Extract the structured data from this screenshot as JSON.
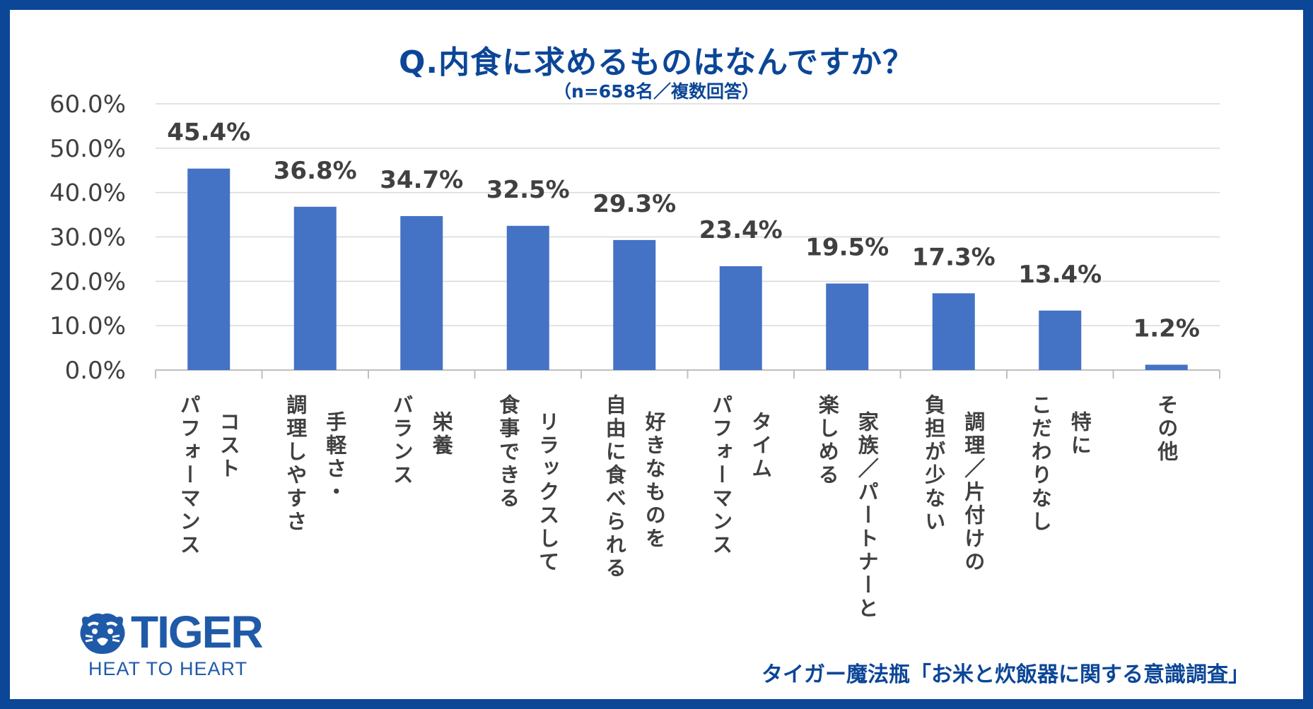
{
  "colors": {
    "bar": "#4472c4",
    "frame": "#0b4697",
    "title": "#0b4697",
    "text": "#404040",
    "grid": "#d9d9d9",
    "axis": "#bfbfbf"
  },
  "title": "Q.内食に求めるものはなんですか？",
  "subtitle": "（n=658名／複数回答）",
  "logo": {
    "brand": "TIGER",
    "tagline": "HEAT TO HEART",
    "icon": "tiger-head-icon"
  },
  "source": "タイガー魔法瓶「お米と炊飯器に関する意識調査」",
  "chart_data": {
    "type": "bar",
    "title": "Q.内食に求めるものはなんですか？",
    "subtitle": "（n=658名／複数回答）",
    "categories": [
      [
        "コスト",
        "パフォーマンス"
      ],
      [
        "手軽さ・",
        "調理しやすさ"
      ],
      [
        "栄養",
        "バランス"
      ],
      [
        "リラックスして",
        "食事できる"
      ],
      [
        "好きなものを",
        "自由に食べられる"
      ],
      [
        "タイム",
        "パフォーマンス"
      ],
      [
        "家族／パートナーと",
        "楽しめる"
      ],
      [
        "調理／片付けの",
        "負担が少ない"
      ],
      [
        "特に",
        "こだわりなし"
      ],
      [
        "その他"
      ]
    ],
    "values": [
      45.4,
      36.8,
      34.7,
      32.5,
      29.3,
      23.4,
      19.5,
      17.3,
      13.4,
      1.2
    ],
    "value_labels": [
      "45.4%",
      "36.8%",
      "34.7%",
      "32.5%",
      "29.3%",
      "23.4%",
      "19.5%",
      "17.3%",
      "13.4%",
      "1.2%"
    ],
    "y_ticks": [
      0,
      10,
      20,
      30,
      40,
      50,
      60
    ],
    "y_tick_labels": [
      "0.0%",
      "10.0%",
      "20.0%",
      "30.0%",
      "40.0%",
      "50.0%",
      "60.0%"
    ],
    "ylim": [
      0,
      60
    ],
    "grid": true,
    "xlabel": "",
    "ylabel": ""
  }
}
